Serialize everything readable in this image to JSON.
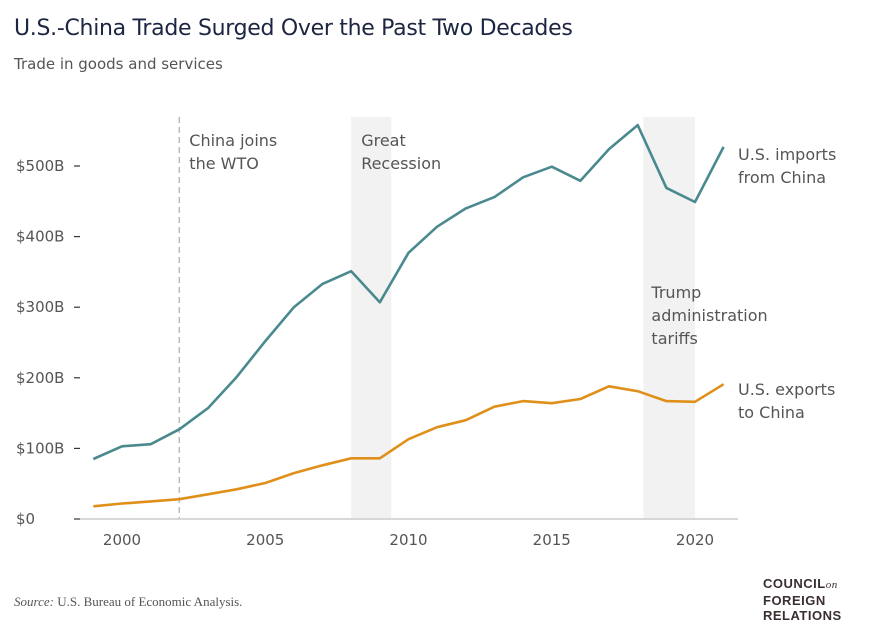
{
  "title": "U.S.-China Trade Surged Over the Past Two Decades",
  "subtitle": "Trade in goods and services",
  "source_label": "Source:",
  "source_text": "U.S. Bureau of Economic Analysis.",
  "logo": {
    "line1": "COUNCIL",
    "on": "on",
    "line2": "FOREIGN",
    "line3": "RELATIONS"
  },
  "chart_data": {
    "type": "line",
    "title": "U.S.-China Trade Surged Over the Past Two Decades",
    "subtitle": "Trade in goods and services",
    "x": [
      1999,
      2000,
      2001,
      2002,
      2003,
      2004,
      2005,
      2006,
      2007,
      2008,
      2009,
      2010,
      2011,
      2012,
      2013,
      2014,
      2015,
      2016,
      2017,
      2018,
      2019,
      2020,
      2021
    ],
    "xlim": [
      1999,
      2022
    ],
    "ylim": [
      0,
      560
    ],
    "x_ticks": [
      2000,
      2005,
      2010,
      2015,
      2020
    ],
    "x_tick_labels": [
      "2000",
      "2005",
      "2010",
      "2015",
      "2020"
    ],
    "y_ticks": [
      0,
      100,
      200,
      300,
      400,
      500
    ],
    "y_tick_labels": [
      "$0",
      "$100B",
      "$200B",
      "$300B",
      "$400B",
      "$500B"
    ],
    "grid": false,
    "series": [
      {
        "name": "U.S. imports from China",
        "label_lines": [
          "U.S. imports",
          "from China"
        ],
        "color": "#4a8a8f",
        "values": [
          85,
          103,
          106,
          127,
          157,
          201,
          252,
          300,
          333,
          351,
          307,
          377,
          414,
          440,
          456,
          484,
          499,
          479,
          524,
          558,
          469,
          449,
          527
        ]
      },
      {
        "name": "U.S. exports to China",
        "label_lines": [
          "U.S. exports",
          "to China"
        ],
        "color": "#e0901a",
        "values": [
          18,
          22,
          25,
          28,
          35,
          42,
          51,
          65,
          76,
          86,
          86,
          113,
          130,
          140,
          159,
          167,
          164,
          170,
          188,
          181,
          167,
          166,
          191
        ]
      }
    ],
    "annotations": [
      {
        "type": "vline",
        "x": 2002,
        "label_lines": [
          "China joins",
          "the WTO"
        ]
      },
      {
        "type": "band",
        "x0": 2008,
        "x1": 2009.4,
        "label_lines": [
          "Great",
          "Recession"
        ]
      },
      {
        "type": "band",
        "x0": 2018.2,
        "x1": 2020,
        "label_lines": [
          "Trump",
          "administration",
          "tariffs"
        ]
      }
    ],
    "colors": {
      "band": "#f2f2f2",
      "axis": "#cccccc",
      "text": "#555555",
      "vline": "#bbbbbb"
    }
  }
}
